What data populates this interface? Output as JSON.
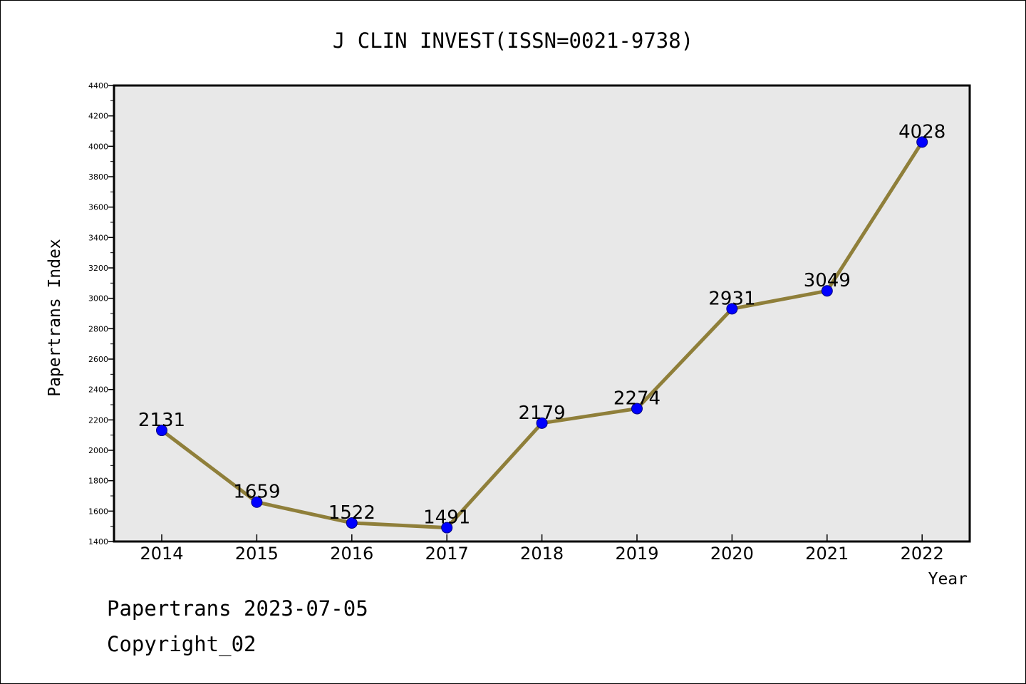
{
  "chart_data": {
    "type": "line",
    "title": "J CLIN INVEST(ISSN=0021-9738)",
    "xlabel": "Year",
    "ylabel": "Papertrans Index",
    "categories": [
      "2014",
      "2015",
      "2016",
      "2017",
      "2018",
      "2019",
      "2020",
      "2021",
      "2022"
    ],
    "series": [
      {
        "values": [
          2131,
          1659,
          1522,
          1491,
          2179,
          2274,
          2931,
          3049,
          4028
        ],
        "data_labels": [
          "2131",
          "1659",
          "1522",
          "1491",
          "2179",
          "2274",
          "2931",
          "3049",
          "4028"
        ]
      }
    ],
    "ylim": [
      1400,
      4400
    ],
    "yticks": [
      1400,
      1600,
      1800,
      2000,
      2200,
      2400,
      2600,
      2800,
      3000,
      3200,
      3400,
      3600,
      3800,
      4000,
      4200,
      4400
    ],
    "ytick_labels": [
      "1400",
      "1600",
      "1800",
      "2000",
      "2200",
      "2400",
      "2600",
      "2800",
      "3000",
      "3200",
      "3400",
      "3600",
      "3800",
      "4000",
      "4200",
      "4400"
    ],
    "grid": false,
    "legend": "none",
    "colors": {
      "line": "#8f7f3a",
      "marker": "#0000ff",
      "plot_background": "#e8e8e8",
      "axes": "#000000"
    }
  },
  "footer": {
    "line1": "Papertrans 2023-07-05",
    "line2": "Copyright_02"
  }
}
